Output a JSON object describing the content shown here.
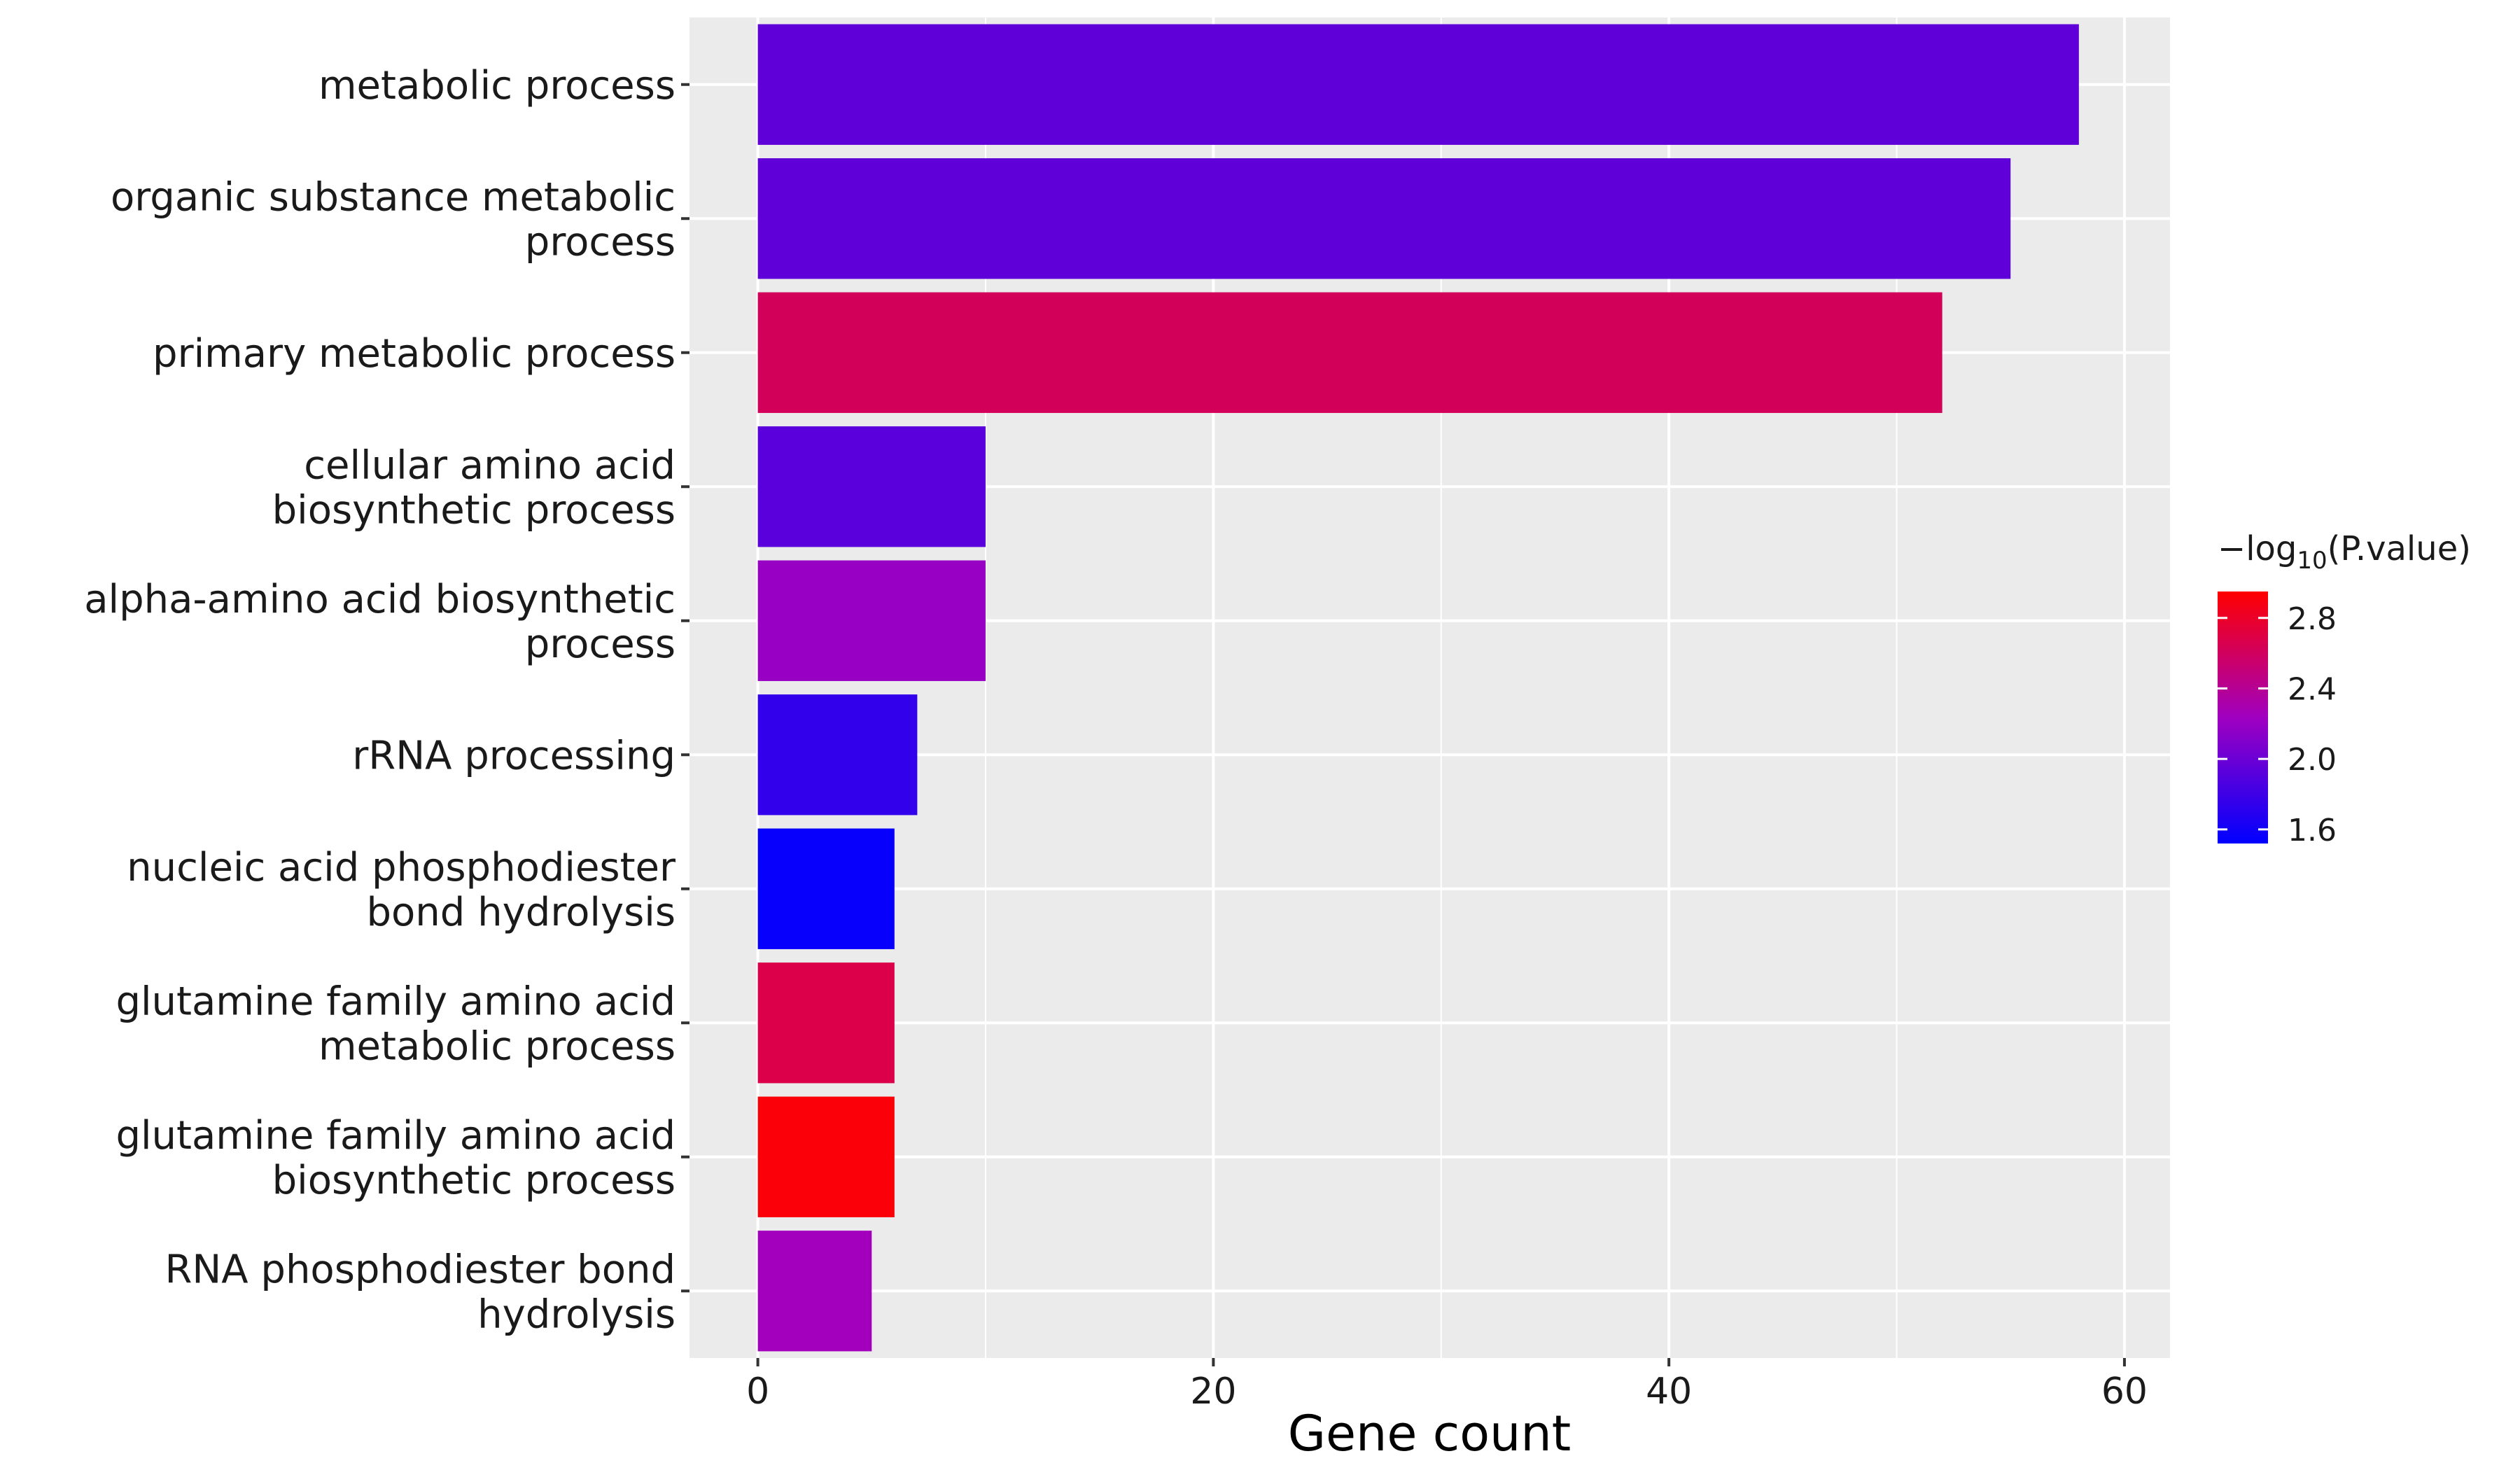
{
  "chart_data": {
    "type": "bar",
    "orientation": "horizontal",
    "categories": [
      [
        "metabolic process"
      ],
      [
        "organic substance metabolic",
        "process"
      ],
      [
        "primary metabolic process"
      ],
      [
        "cellular amino acid",
        "biosynthetic process"
      ],
      [
        "alpha-amino acid biosynthetic",
        "process"
      ],
      [
        "rRNA processing"
      ],
      [
        "nucleic acid phosphodiester",
        "bond hydrolysis"
      ],
      [
        "glutamine family amino acid",
        "metabolic process"
      ],
      [
        "glutamine family amino acid",
        "biosynthetic process"
      ],
      [
        "RNA phosphodiester bond",
        "hydrolysis"
      ]
    ],
    "values": [
      58,
      55,
      52,
      10,
      10,
      7,
      6,
      6,
      6,
      5
    ],
    "color_values": [
      1.95,
      1.95,
      2.62,
      1.92,
      2.2,
      1.75,
      1.55,
      2.68,
      2.92,
      2.25
    ],
    "title": "",
    "xlabel": "Gene count",
    "ylabel": "",
    "xlim": [
      -3,
      62
    ],
    "xticks": [
      0,
      20,
      40,
      60
    ],
    "grid": true,
    "panel_background": "#EBEBEB",
    "grid_color": "#FFFFFF",
    "legend": {
      "title_prefix": "−log",
      "title_subscript": "10",
      "title_suffix": "(P.value)",
      "position": "right",
      "ticks": [
        "1.6",
        "2.0",
        "2.4",
        "2.8"
      ],
      "tick_values": [
        1.6,
        2.0,
        2.4,
        2.8
      ],
      "range": [
        1.52,
        2.95
      ],
      "low_color": "#0000FF",
      "high_color": "#FF0000"
    }
  }
}
